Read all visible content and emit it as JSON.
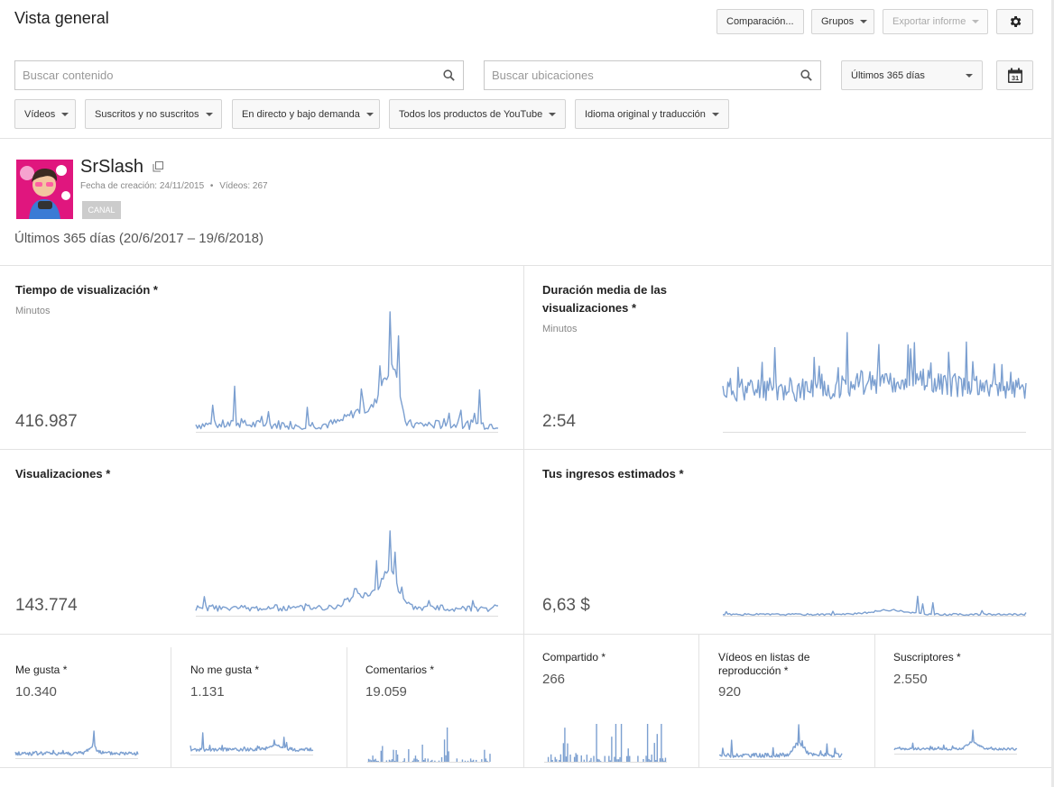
{
  "header": {
    "title": "Vista general",
    "compare_label": "Comparación...",
    "groups_label": "Grupos",
    "export_label": "Exportar informe",
    "settings_icon": "gear-icon"
  },
  "filters": {
    "search_content_placeholder": "Buscar contenido",
    "search_locations_placeholder": "Buscar ubicaciones",
    "date_range_label": "Últimos 365 días",
    "calendar_day": "31",
    "videos_label": "Vídeos",
    "subscribers_label": "Suscritos y no suscritos",
    "live_label": "En directo y bajo demanda",
    "products_label": "Todos los productos de YouTube",
    "language_label": "Idioma original y traducción"
  },
  "channel": {
    "name": "SrSlash",
    "created_label": "Fecha de creación: 24/11/2015",
    "separator": "•",
    "videos_count": "Vídeos: 267",
    "badge": "CANAL",
    "range": "Últimos 365 días (20/6/2017 – 19/6/2018)"
  },
  "metrics": {
    "watch_time": {
      "title": "Tiempo de visualización *",
      "unit": "Minutos",
      "value": "416.987"
    },
    "avg_duration": {
      "title_line1": "Duración media de las",
      "title_line2": "visualizaciones *",
      "unit": "Minutos",
      "value": "2:54"
    },
    "views": {
      "title": "Visualizaciones *",
      "value": "143.774"
    },
    "revenue": {
      "title": "Tus ingresos estimados *",
      "value": "6,63 $"
    },
    "likes": {
      "title": "Me gusta *",
      "value": "10.340"
    },
    "dislikes": {
      "title": "No me gusta *",
      "value": "1.131"
    },
    "comments": {
      "title": "Comentarios *",
      "value": "19.059"
    },
    "shares": {
      "title": "Compartido *",
      "value": "266"
    },
    "playlists": {
      "title_line1": "Vídeos en listas de",
      "title_line2": "reproducción *",
      "value": "920"
    },
    "subscribers": {
      "title": "Suscriptores *",
      "value": "2.550"
    }
  },
  "colors": {
    "line": "#7b9fd0",
    "baseline": "#dddddd",
    "border": "#e2e2e2"
  }
}
